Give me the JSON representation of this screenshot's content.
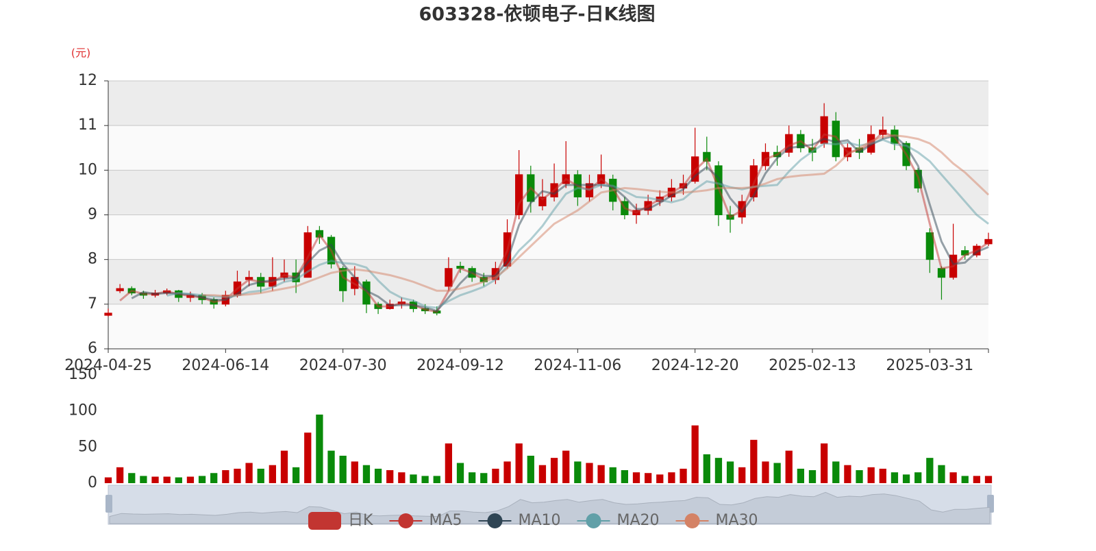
{
  "chart_data": {
    "type": "candlestick",
    "title": "603328-依顿电子-日K线图",
    "y_unit_label": "(元)",
    "categories": [
      "2024-04-25",
      null,
      null,
      null,
      null,
      null,
      null,
      null,
      null,
      null,
      "2024-06-14",
      null,
      null,
      null,
      null,
      null,
      null,
      null,
      null,
      null,
      "2024-07-30",
      null,
      null,
      null,
      null,
      null,
      null,
      null,
      null,
      null,
      "2024-09-12",
      null,
      null,
      null,
      null,
      null,
      null,
      null,
      null,
      null,
      "2024-11-06",
      null,
      null,
      null,
      null,
      null,
      null,
      null,
      null,
      null,
      "2024-12-20",
      null,
      null,
      null,
      null,
      null,
      null,
      null,
      null,
      null,
      "2025-02-13",
      null,
      null,
      null,
      null,
      null,
      null,
      null,
      null,
      null,
      "2025-03-31",
      null,
      null,
      null,
      null,
      null
    ],
    "ylim": [
      6,
      12
    ],
    "yticks": [
      6,
      7,
      8,
      9,
      10,
      11,
      12
    ],
    "grid": true,
    "up_color": "#c80000",
    "down_color": "#0a8a0a",
    "series": [
      {
        "name": "日K",
        "color": "#c23531",
        "values": [
          [
            6.75,
            6.8,
            6.72,
            6.9
          ],
          [
            7.3,
            7.35,
            7.25,
            7.45
          ],
          [
            7.35,
            7.25,
            7.2,
            7.4
          ],
          [
            7.25,
            7.2,
            7.12,
            7.3
          ],
          [
            7.2,
            7.25,
            7.15,
            7.32
          ],
          [
            7.25,
            7.3,
            7.2,
            7.35
          ],
          [
            7.3,
            7.15,
            7.05,
            7.32
          ],
          [
            7.15,
            7.2,
            7.05,
            7.28
          ],
          [
            7.2,
            7.1,
            7.0,
            7.25
          ],
          [
            7.1,
            7.0,
            6.9,
            7.15
          ],
          [
            7.0,
            7.2,
            6.95,
            7.3
          ],
          [
            7.2,
            7.5,
            7.15,
            7.75
          ],
          [
            7.55,
            7.6,
            7.4,
            7.75
          ],
          [
            7.6,
            7.4,
            7.25,
            7.7
          ],
          [
            7.4,
            7.6,
            7.3,
            8.05
          ],
          [
            7.6,
            7.7,
            7.5,
            8.0
          ],
          [
            7.7,
            7.5,
            7.25,
            8.0
          ],
          [
            7.6,
            8.6,
            7.6,
            8.75
          ],
          [
            8.65,
            8.5,
            8.35,
            8.75
          ],
          [
            8.5,
            7.9,
            7.8,
            8.55
          ],
          [
            7.8,
            7.3,
            7.05,
            7.85
          ],
          [
            7.35,
            7.6,
            7.2,
            7.85
          ],
          [
            7.5,
            7.0,
            6.8,
            7.55
          ],
          [
            7.0,
            6.9,
            6.78,
            7.05
          ],
          [
            6.9,
            7.0,
            6.88,
            7.1
          ],
          [
            7.0,
            7.05,
            6.9,
            7.15
          ],
          [
            7.05,
            6.9,
            6.82,
            7.1
          ],
          [
            6.9,
            6.85,
            6.78,
            7.0
          ],
          [
            6.85,
            6.8,
            6.75,
            6.95
          ],
          [
            7.4,
            7.8,
            7.3,
            8.05
          ],
          [
            7.85,
            7.8,
            7.7,
            7.95
          ],
          [
            7.8,
            7.6,
            7.5,
            7.85
          ],
          [
            7.6,
            7.5,
            7.4,
            7.7
          ],
          [
            7.55,
            7.8,
            7.45,
            7.95
          ],
          [
            7.85,
            8.6,
            7.8,
            8.9
          ],
          [
            9.0,
            9.9,
            8.9,
            10.45
          ],
          [
            9.9,
            9.3,
            9.05,
            10.1
          ],
          [
            9.2,
            9.4,
            9.1,
            9.8
          ],
          [
            9.4,
            9.7,
            9.3,
            10.15
          ],
          [
            9.7,
            9.9,
            9.6,
            10.65
          ],
          [
            9.9,
            9.4,
            9.2,
            10.0
          ],
          [
            9.4,
            9.7,
            9.3,
            9.9
          ],
          [
            9.7,
            9.9,
            9.6,
            10.35
          ],
          [
            9.8,
            9.3,
            9.1,
            9.9
          ],
          [
            9.3,
            9.0,
            8.9,
            9.4
          ],
          [
            9.0,
            9.1,
            8.8,
            9.25
          ],
          [
            9.1,
            9.3,
            9.0,
            9.45
          ],
          [
            9.3,
            9.4,
            9.2,
            9.55
          ],
          [
            9.4,
            9.6,
            9.3,
            9.8
          ],
          [
            9.6,
            9.7,
            9.45,
            9.9
          ],
          [
            9.75,
            10.3,
            9.7,
            10.95
          ],
          [
            10.4,
            10.2,
            10.0,
            10.75
          ],
          [
            10.1,
            9.0,
            8.75,
            10.2
          ],
          [
            9.0,
            8.9,
            8.6,
            9.2
          ],
          [
            8.95,
            9.3,
            8.8,
            9.45
          ],
          [
            9.4,
            10.1,
            9.3,
            10.25
          ],
          [
            10.1,
            10.4,
            10.0,
            10.6
          ],
          [
            10.4,
            10.3,
            10.1,
            10.55
          ],
          [
            10.4,
            10.8,
            10.3,
            11.0
          ],
          [
            10.8,
            10.5,
            10.4,
            10.9
          ],
          [
            10.5,
            10.4,
            10.2,
            10.7
          ],
          [
            10.6,
            11.2,
            10.5,
            11.5
          ],
          [
            11.1,
            10.3,
            10.2,
            11.3
          ],
          [
            10.3,
            10.5,
            10.2,
            10.6
          ],
          [
            10.5,
            10.4,
            10.25,
            10.7
          ],
          [
            10.4,
            10.8,
            10.35,
            11.0
          ],
          [
            10.8,
            10.9,
            10.7,
            11.2
          ],
          [
            10.9,
            10.6,
            10.45,
            11.0
          ],
          [
            10.6,
            10.1,
            10.0,
            10.65
          ],
          [
            10.0,
            9.6,
            9.5,
            10.05
          ],
          [
            8.6,
            8.0,
            7.7,
            8.7
          ],
          [
            7.8,
            7.6,
            7.1,
            7.85
          ],
          [
            7.6,
            8.1,
            7.55,
            8.8
          ],
          [
            8.2,
            8.1,
            8.0,
            8.3
          ],
          [
            8.1,
            8.3,
            8.05,
            8.35
          ],
          [
            8.35,
            8.45,
            8.3,
            8.6
          ]
        ]
      },
      {
        "name": "MA5",
        "color": "#c23531",
        "values": [
          null,
          7.08,
          7.3,
          7.23,
          7.23,
          7.28,
          7.23,
          7.18,
          7.15,
          7.05,
          7.1,
          7.35,
          7.55,
          7.5,
          7.5,
          7.65,
          7.6,
          8.05,
          8.55,
          8.2,
          7.6,
          7.45,
          7.3,
          6.95,
          6.95,
          7.03,
          6.98,
          6.88,
          6.83,
          7.3,
          7.8,
          7.7,
          7.55,
          7.65,
          8.2,
          9.25,
          9.6,
          9.35,
          9.55,
          9.8,
          9.65,
          9.55,
          9.8,
          9.6,
          9.15,
          9.05,
          9.2,
          9.35,
          9.5,
          9.65,
          10.0,
          10.25,
          9.6,
          8.95,
          9.1,
          9.7,
          10.25,
          10.35,
          10.55,
          10.65,
          10.45,
          10.8,
          10.75,
          10.4,
          10.45,
          10.6,
          10.85,
          10.75,
          10.35,
          9.85,
          8.8,
          7.8,
          7.85,
          8.1,
          8.2,
          8.38
        ]
      },
      {
        "name": "MA10",
        "color": "#2f4554",
        "values": [
          null,
          null,
          7.13,
          7.27,
          7.23,
          7.25,
          7.23,
          7.22,
          7.15,
          7.1,
          7.1,
          7.23,
          7.43,
          7.5,
          7.53,
          7.57,
          7.6,
          7.93,
          8.2,
          8.33,
          7.9,
          7.6,
          7.3,
          7.17,
          6.97,
          6.98,
          6.98,
          6.93,
          6.85,
          7.15,
          7.47,
          7.73,
          7.63,
          7.63,
          7.97,
          8.77,
          9.27,
          9.53,
          9.47,
          9.67,
          9.67,
          9.67,
          9.67,
          9.63,
          9.4,
          9.13,
          9.13,
          9.27,
          9.43,
          9.57,
          9.87,
          10.07,
          9.83,
          9.37,
          9.07,
          9.43,
          9.93,
          10.27,
          10.5,
          10.53,
          10.57,
          10.7,
          10.63,
          10.67,
          10.4,
          10.57,
          10.7,
          10.77,
          10.53,
          10.1,
          9.23,
          8.4,
          7.9,
          7.93,
          8.17,
          8.28
        ]
      },
      {
        "name": "MA20",
        "color": "#61a0a8",
        "values": [
          null,
          null,
          null,
          null,
          null,
          7.19,
          7.25,
          7.23,
          7.2,
          7.17,
          7.16,
          7.19,
          7.27,
          7.3,
          7.38,
          7.5,
          7.55,
          7.73,
          7.88,
          7.97,
          7.92,
          7.9,
          7.82,
          7.53,
          7.28,
          7.14,
          7.08,
          6.95,
          6.92,
          7.07,
          7.2,
          7.29,
          7.39,
          7.55,
          7.85,
          8.2,
          8.45,
          8.75,
          9.12,
          9.47,
          9.6,
          9.57,
          9.67,
          9.65,
          9.53,
          9.4,
          9.38,
          9.33,
          9.28,
          9.35,
          9.57,
          9.75,
          9.7,
          9.62,
          9.57,
          9.63,
          9.65,
          9.67,
          9.97,
          10.23,
          10.42,
          10.6,
          10.58,
          10.62,
          10.55,
          10.6,
          10.68,
          10.58,
          10.55,
          10.4,
          10.2,
          9.9,
          9.6,
          9.3,
          9.0,
          8.8
        ]
      },
      {
        "name": "MA30",
        "color": "#d48265",
        "values": [
          null,
          null,
          null,
          null,
          null,
          null,
          null,
          null,
          7.2,
          7.2,
          7.18,
          7.2,
          7.22,
          7.25,
          7.3,
          7.35,
          7.4,
          7.5,
          7.6,
          7.7,
          7.75,
          7.78,
          7.75,
          7.7,
          7.65,
          7.58,
          7.5,
          7.4,
          7.3,
          7.3,
          7.35,
          7.42,
          7.5,
          7.6,
          7.8,
          8.05,
          8.3,
          8.55,
          8.8,
          8.95,
          9.1,
          9.3,
          9.5,
          9.55,
          9.6,
          9.58,
          9.55,
          9.52,
          9.5,
          9.5,
          9.52,
          9.55,
          9.6,
          9.6,
          9.6,
          9.62,
          9.7,
          9.8,
          9.85,
          9.88,
          9.9,
          9.92,
          10.1,
          10.35,
          10.5,
          10.65,
          10.75,
          10.78,
          10.75,
          10.7,
          10.6,
          10.4,
          10.15,
          9.95,
          9.7,
          9.45
        ]
      }
    ],
    "volume": {
      "ylim": [
        0,
        150
      ],
      "yticks": [
        0,
        50,
        100,
        150
      ],
      "values": [
        8,
        22,
        14,
        10,
        9,
        9,
        8,
        9,
        10,
        14,
        18,
        20,
        28,
        20,
        25,
        45,
        22,
        70,
        95,
        45,
        38,
        30,
        25,
        20,
        18,
        15,
        12,
        10,
        10,
        55,
        28,
        15,
        14,
        20,
        30,
        55,
        38,
        25,
        35,
        45,
        30,
        28,
        25,
        22,
        18,
        15,
        14,
        12,
        15,
        20,
        80,
        40,
        35,
        30,
        22,
        60,
        30,
        28,
        45,
        20,
        18,
        55,
        30,
        25,
        18,
        22,
        20,
        15,
        12,
        15,
        35,
        25,
        15,
        10,
        10,
        10
      ]
    }
  }
}
